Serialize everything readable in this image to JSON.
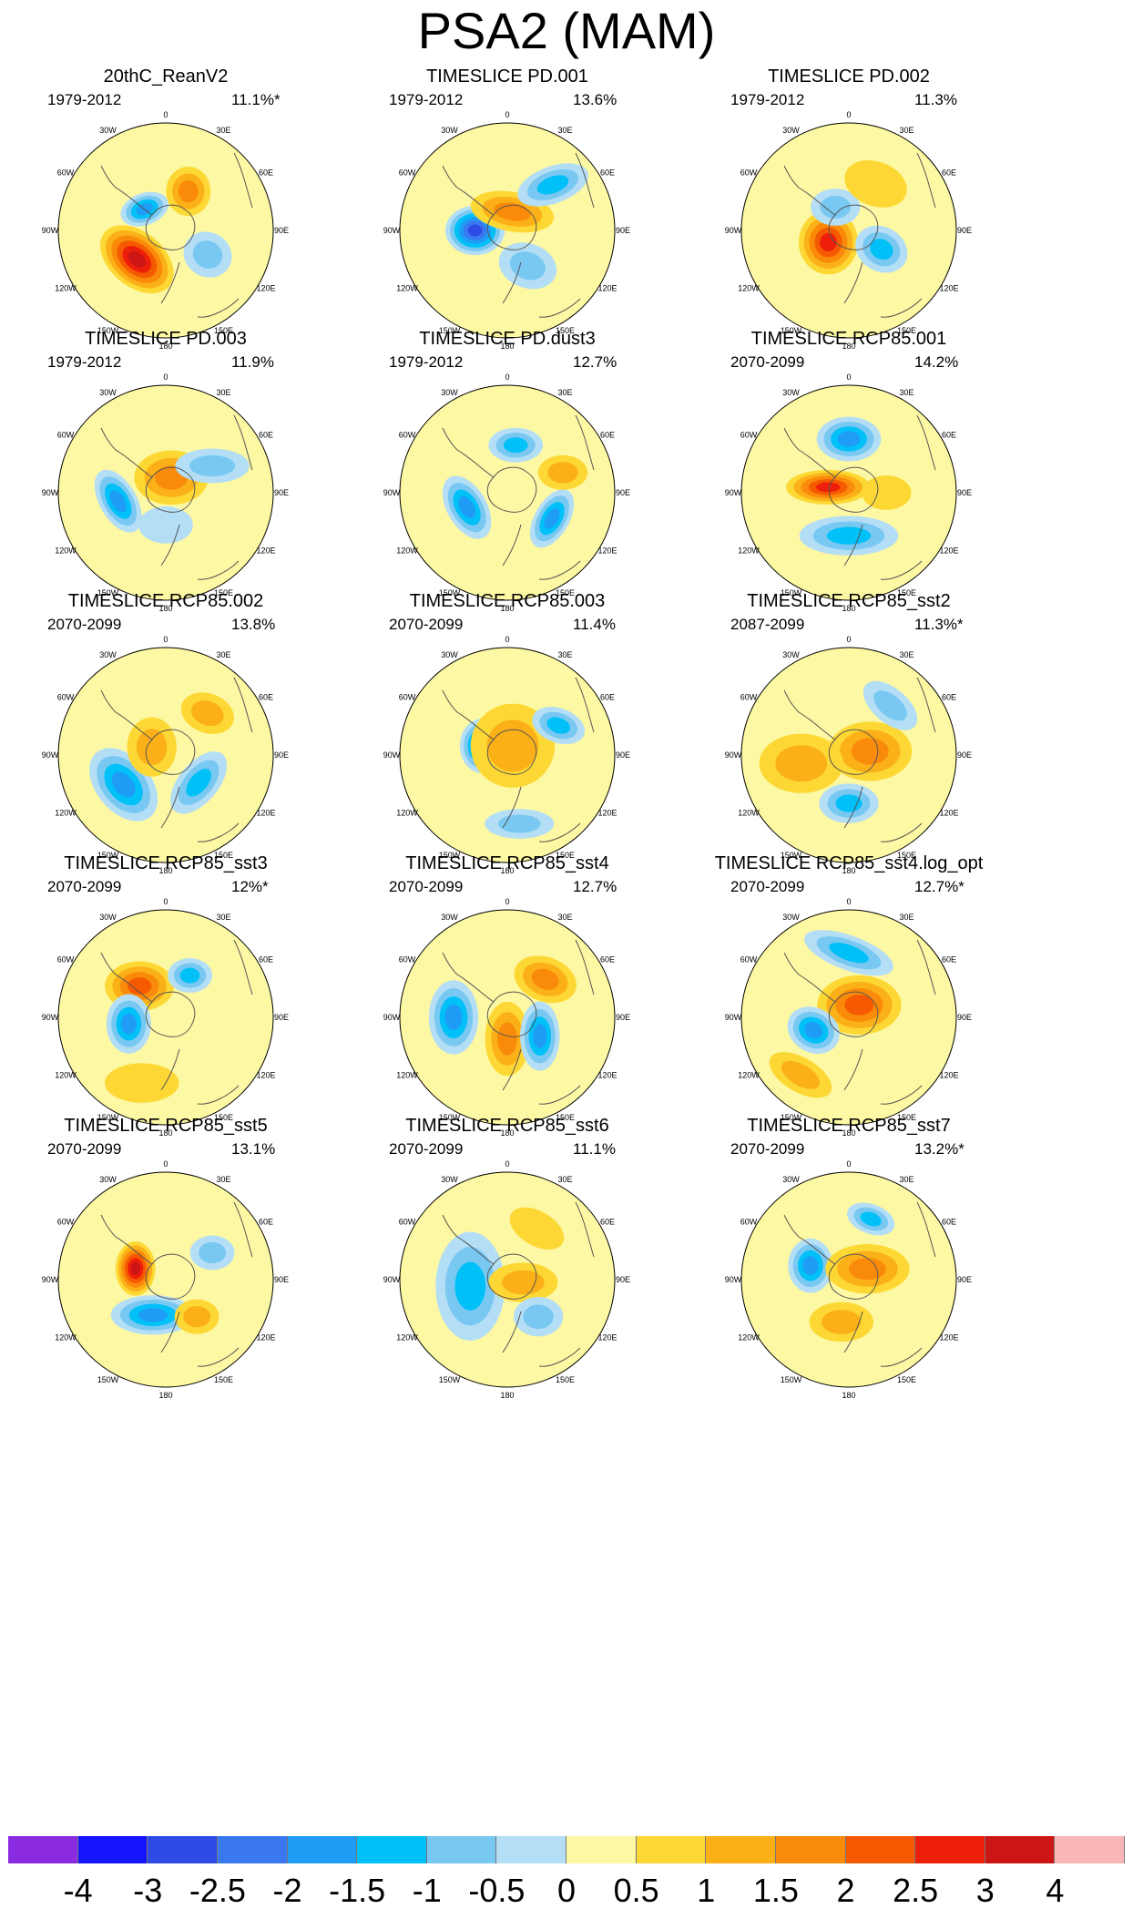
{
  "title": "PSA2 (MAM)",
  "colors": {
    "neg4": "#8a2be2",
    "neg3": "#1414ff",
    "neg2_5": "#2e4be8",
    "neg2": "#3a78f0",
    "neg1_5": "#1e9cf6",
    "neg1": "#00c0f8",
    "neg0_5": "#78c8f2",
    "neg0": "#b4def5",
    "pos0": "#fdf8a3",
    "pos0_5": "#fdd835",
    "pos1": "#fbb018",
    "pos1_5": "#fa8a0a",
    "pos2": "#f55a00",
    "pos2_5": "#ee1f0a",
    "pos3": "#cc1616",
    "pos4": "#fab6b6",
    "coast": "#555555"
  },
  "map": {
    "lon_labels": [
      "0",
      "30E",
      "60E",
      "90E",
      "120E",
      "150E",
      "180",
      "150W",
      "120W",
      "90W",
      "60W",
      "30W"
    ]
  },
  "panels": [
    {
      "title": "20thC_ReanV2",
      "years": "1979-2012",
      "pct": "11.1%*",
      "features": [
        {
          "angle": 225,
          "r": 0.38,
          "rx": 0.34,
          "ry": 0.22,
          "rot": 40,
          "value": 3
        },
        {
          "angle": 315,
          "r": 0.28,
          "rx": 0.2,
          "ry": 0.13,
          "rot": -20,
          "value": -2
        },
        {
          "angle": 30,
          "r": 0.42,
          "rx": 0.18,
          "ry": 0.2,
          "rot": 0,
          "value": 1.5
        },
        {
          "angle": 120,
          "r": 0.45,
          "rx": 0.2,
          "ry": 0.18,
          "rot": 30,
          "value": -1
        }
      ]
    },
    {
      "title": "TIMESLICE PD.001",
      "years": "1979-2012",
      "pct": "13.6%",
      "features": [
        {
          "angle": 270,
          "r": 0.3,
          "rx": 0.24,
          "ry": 0.2,
          "rot": 0,
          "value": -3
        },
        {
          "angle": 15,
          "r": 0.18,
          "rx": 0.34,
          "ry": 0.16,
          "rot": 10,
          "value": 1.5
        },
        {
          "angle": 45,
          "r": 0.6,
          "rx": 0.3,
          "ry": 0.15,
          "rot": -20,
          "value": -1.5
        },
        {
          "angle": 150,
          "r": 0.38,
          "rx": 0.24,
          "ry": 0.18,
          "rot": 20,
          "value": -1
        }
      ]
    },
    {
      "title": "TIMESLICE PD.002",
      "years": "1979-2012",
      "pct": "11.3%",
      "features": [
        {
          "angle": 240,
          "r": 0.22,
          "rx": 0.24,
          "ry": 0.26,
          "rot": 0,
          "value": 2.5
        },
        {
          "angle": 330,
          "r": 0.25,
          "rx": 0.2,
          "ry": 0.15,
          "rot": 0,
          "value": -1
        },
        {
          "angle": 120,
          "r": 0.35,
          "rx": 0.22,
          "ry": 0.18,
          "rot": 30,
          "value": -1.5
        },
        {
          "angle": 30,
          "r": 0.5,
          "rx": 0.26,
          "ry": 0.18,
          "rot": 20,
          "value": 0.5
        }
      ]
    },
    {
      "title": "TIMESLICE PD.003",
      "years": "1979-2012",
      "pct": "11.9%",
      "features": [
        {
          "angle": 260,
          "r": 0.45,
          "rx": 0.28,
          "ry": 0.15,
          "rot": 60,
          "value": -2
        },
        {
          "angle": 20,
          "r": 0.15,
          "rx": 0.3,
          "ry": 0.22,
          "rot": 0,
          "value": 1.5
        },
        {
          "angle": 60,
          "r": 0.5,
          "rx": 0.3,
          "ry": 0.14,
          "rot": 0,
          "value": -1
        },
        {
          "angle": 180,
          "r": 0.3,
          "rx": 0.22,
          "ry": 0.15,
          "rot": 0,
          "value": -0.5
        }
      ]
    },
    {
      "title": "TIMESLICE PD.dust3",
      "years": "1979-2012",
      "pct": "12.7%",
      "features": [
        {
          "angle": 250,
          "r": 0.4,
          "rx": 0.28,
          "ry": 0.16,
          "rot": 60,
          "value": -2
        },
        {
          "angle": 120,
          "r": 0.48,
          "rx": 0.26,
          "ry": 0.14,
          "rot": -60,
          "value": -2
        },
        {
          "angle": 10,
          "r": 0.45,
          "rx": 0.22,
          "ry": 0.14,
          "rot": 0,
          "value": -1.5
        },
        {
          "angle": 70,
          "r": 0.55,
          "rx": 0.2,
          "ry": 0.14,
          "rot": 0,
          "value": 1
        }
      ]
    },
    {
      "title": "TIMESLICE RCP85.001",
      "years": "2070-2099",
      "pct": "14.2%",
      "features": [
        {
          "angle": 285,
          "r": 0.2,
          "rx": 0.34,
          "ry": 0.14,
          "rot": 0,
          "value": 2.5
        },
        {
          "angle": 0,
          "r": 0.5,
          "rx": 0.26,
          "ry": 0.18,
          "rot": 0,
          "value": -2
        },
        {
          "angle": 180,
          "r": 0.4,
          "rx": 0.4,
          "ry": 0.16,
          "rot": 0,
          "value": -1.5
        },
        {
          "angle": 90,
          "r": 0.35,
          "rx": 0.2,
          "ry": 0.14,
          "rot": 0,
          "value": 0.5
        }
      ]
    },
    {
      "title": "TIMESLICE RCP85.002",
      "years": "2070-2099",
      "pct": "13.8%",
      "features": [
        {
          "angle": 235,
          "r": 0.48,
          "rx": 0.34,
          "ry": 0.22,
          "rot": 50,
          "value": -2
        },
        {
          "angle": 130,
          "r": 0.4,
          "rx": 0.3,
          "ry": 0.16,
          "rot": -50,
          "value": -1.5
        },
        {
          "angle": 45,
          "r": 0.55,
          "rx": 0.22,
          "ry": 0.16,
          "rot": 20,
          "value": 1
        },
        {
          "angle": 300,
          "r": 0.15,
          "rx": 0.2,
          "ry": 0.24,
          "rot": 0,
          "value": 1
        }
      ]
    },
    {
      "title": "TIMESLICE RCP85.003",
      "years": "2070-2099",
      "pct": "11.4%",
      "features": [
        {
          "angle": 290,
          "r": 0.25,
          "rx": 0.18,
          "ry": 0.22,
          "rot": 0,
          "value": -2.5
        },
        {
          "angle": 30,
          "r": 0.1,
          "rx": 0.34,
          "ry": 0.34,
          "rot": 0,
          "value": 1
        },
        {
          "angle": 60,
          "r": 0.55,
          "rx": 0.22,
          "ry": 0.14,
          "rot": 20,
          "value": -1.5
        },
        {
          "angle": 170,
          "r": 0.65,
          "rx": 0.28,
          "ry": 0.12,
          "rot": 0,
          "value": -1
        }
      ]
    },
    {
      "title": "TIMESLICE RCP85_sst2",
      "years": "2087-2099",
      "pct": "11.3%*",
      "features": [
        {
          "angle": 80,
          "r": 0.2,
          "rx": 0.34,
          "ry": 0.24,
          "rot": 0,
          "value": 1.5
        },
        {
          "angle": 260,
          "r": 0.45,
          "rx": 0.34,
          "ry": 0.24,
          "rot": 0,
          "value": 1
        },
        {
          "angle": 180,
          "r": 0.45,
          "rx": 0.24,
          "ry": 0.16,
          "rot": 0,
          "value": -1.5
        },
        {
          "angle": 40,
          "r": 0.6,
          "rx": 0.26,
          "ry": 0.14,
          "rot": 40,
          "value": -1
        }
      ]
    },
    {
      "title": "TIMESLICE RCP85_sst3",
      "years": "2070-2099",
      "pct": "12%*",
      "features": [
        {
          "angle": 320,
          "r": 0.38,
          "rx": 0.28,
          "ry": 0.2,
          "rot": 0,
          "value": 2
        },
        {
          "angle": 260,
          "r": 0.35,
          "rx": 0.18,
          "ry": 0.24,
          "rot": 0,
          "value": -2
        },
        {
          "angle": 200,
          "r": 0.65,
          "rx": 0.3,
          "ry": 0.16,
          "rot": 0,
          "value": 0.5
        },
        {
          "angle": 30,
          "r": 0.45,
          "rx": 0.18,
          "ry": 0.14,
          "rot": 0,
          "value": -1.5
        }
      ]
    },
    {
      "title": "TIMESLICE RCP85_sst4",
      "years": "2070-2099",
      "pct": "12.7%",
      "features": [
        {
          "angle": 270,
          "r": 0.5,
          "rx": 0.2,
          "ry": 0.3,
          "rot": 0,
          "value": -2
        },
        {
          "angle": 180,
          "r": 0.2,
          "rx": 0.18,
          "ry": 0.3,
          "rot": 0,
          "value": 1.5
        },
        {
          "angle": 45,
          "r": 0.5,
          "rx": 0.26,
          "ry": 0.18,
          "rot": 20,
          "value": 1.5
        },
        {
          "angle": 120,
          "r": 0.35,
          "rx": 0.16,
          "ry": 0.28,
          "rot": 0,
          "value": -2
        }
      ]
    },
    {
      "title": "TIMESLICE RCP85_sst4.log_opt",
      "years": "2070-2099",
      "pct": "12.7%*",
      "features": [
        {
          "angle": 40,
          "r": 0.15,
          "rx": 0.34,
          "ry": 0.24,
          "rot": 0,
          "value": 2
        },
        {
          "angle": 250,
          "r": 0.35,
          "rx": 0.22,
          "ry": 0.18,
          "rot": 30,
          "value": -2
        },
        {
          "angle": 0,
          "r": 0.6,
          "rx": 0.38,
          "ry": 0.14,
          "rot": 20,
          "value": -1.5
        },
        {
          "angle": 220,
          "r": 0.7,
          "rx": 0.28,
          "ry": 0.14,
          "rot": 30,
          "value": 1
        }
      ]
    },
    {
      "title": "TIMESLICE RCP85_sst5",
      "years": "2070-2099",
      "pct": "13.1%",
      "features": [
        {
          "angle": 290,
          "r": 0.3,
          "rx": 0.16,
          "ry": 0.22,
          "rot": 0,
          "value": 3
        },
        {
          "angle": 200,
          "r": 0.35,
          "rx": 0.34,
          "ry": 0.16,
          "rot": 0,
          "value": -2
        },
        {
          "angle": 60,
          "r": 0.5,
          "rx": 0.18,
          "ry": 0.14,
          "rot": 0,
          "value": -1
        },
        {
          "angle": 140,
          "r": 0.45,
          "rx": 0.18,
          "ry": 0.14,
          "rot": 0,
          "value": 1
        }
      ]
    },
    {
      "title": "TIMESLICE RCP85_sst6",
      "years": "2070-2099",
      "pct": "11.1%",
      "features": [
        {
          "angle": 260,
          "r": 0.35,
          "rx": 0.28,
          "ry": 0.44,
          "rot": 0,
          "value": -1.5
        },
        {
          "angle": 100,
          "r": 0.15,
          "rx": 0.28,
          "ry": 0.16,
          "rot": 0,
          "value": 1
        },
        {
          "angle": 30,
          "r": 0.55,
          "rx": 0.24,
          "ry": 0.14,
          "rot": 30,
          "value": 0.5
        },
        {
          "angle": 140,
          "r": 0.45,
          "rx": 0.2,
          "ry": 0.16,
          "rot": 0,
          "value": -1
        }
      ]
    },
    {
      "title": "TIMESLICE RCP85_sst7",
      "years": "2070-2099",
      "pct": "13.2%*",
      "features": [
        {
          "angle": 290,
          "r": 0.38,
          "rx": 0.18,
          "ry": 0.22,
          "rot": 0,
          "value": -2
        },
        {
          "angle": 60,
          "r": 0.2,
          "rx": 0.34,
          "ry": 0.2,
          "rot": 0,
          "value": 1.5
        },
        {
          "angle": 190,
          "r": 0.4,
          "rx": 0.26,
          "ry": 0.16,
          "rot": 0,
          "value": 1
        },
        {
          "angle": 20,
          "r": 0.6,
          "rx": 0.2,
          "ry": 0.12,
          "rot": 20,
          "value": -1.5
        }
      ]
    }
  ],
  "colorbar": {
    "bins": [
      "neg4",
      "neg3",
      "neg2_5",
      "neg2",
      "neg1_5",
      "neg1",
      "neg0_5",
      "neg0",
      "pos0",
      "pos0_5",
      "pos1",
      "pos1_5",
      "pos2",
      "pos2_5",
      "pos3",
      "pos4"
    ],
    "labels": [
      "-4",
      "-3",
      "-2.5",
      "-2",
      "-1.5",
      "-1",
      "-0.5",
      "0",
      "0.5",
      "1",
      "1.5",
      "2",
      "2.5",
      "3",
      "4"
    ]
  }
}
